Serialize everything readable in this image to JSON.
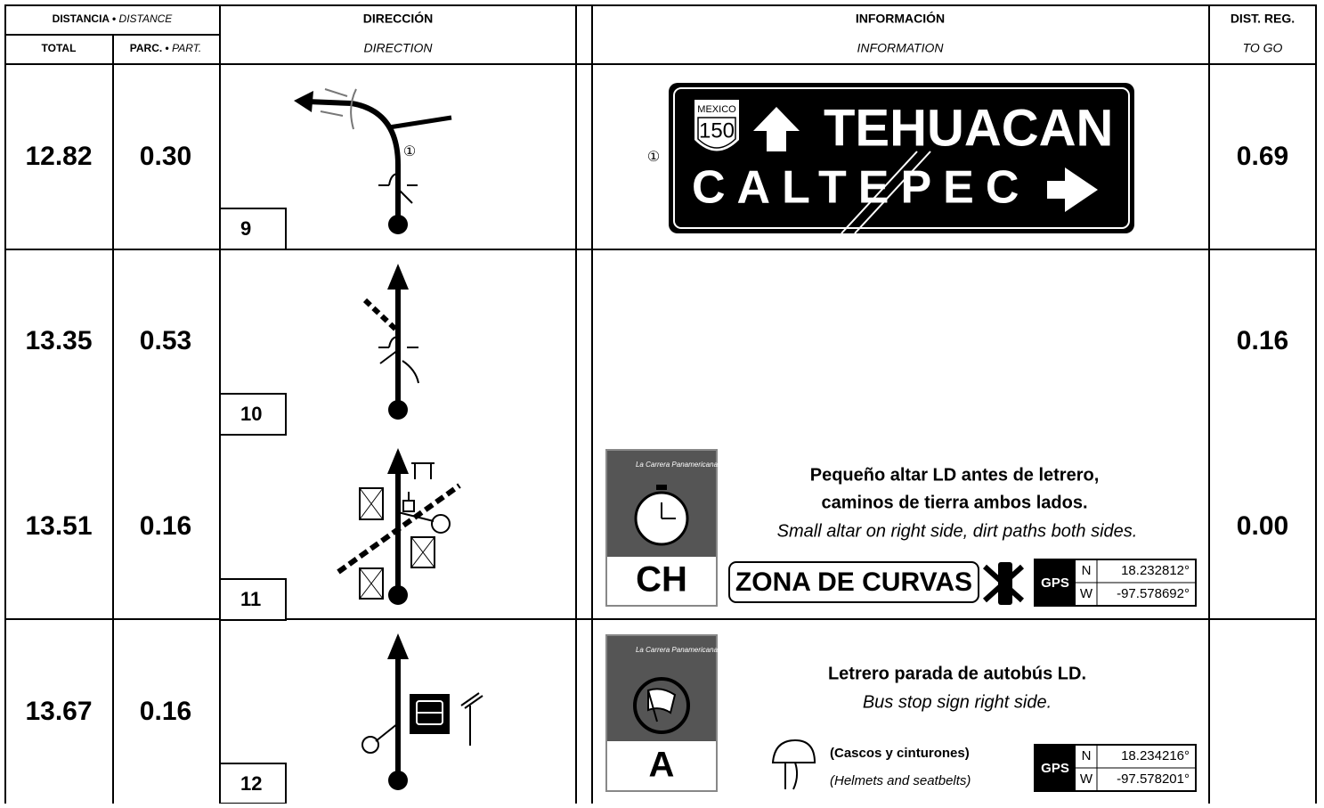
{
  "header": {
    "distance": "DISTANCIA •",
    "distance_en": "DISTANCE",
    "total": "TOTAL",
    "partial": "PARC. •",
    "partial_en": "PART.",
    "direction": "DIRECCIÓN",
    "direction_en": "DIRECTION",
    "info": "INFORMACIÓN",
    "info_en": "INFORMATION",
    "to_go": "DIST. REG.",
    "to_go_en": "TO GO"
  },
  "rows": [
    {
      "number": "9",
      "total": "12.82",
      "partial": "0.30",
      "to_go": "0.69",
      "marker": "①",
      "sign": {
        "shield_top": "MEXICO",
        "shield_number": "150",
        "line1": "TEHUACAN",
        "line2": "CALTEPEC"
      }
    },
    {
      "number": "10",
      "total": "13.35",
      "partial": "0.53",
      "to_go": "0.16"
    },
    {
      "number": "11",
      "total": "13.51",
      "partial": "0.16",
      "to_go": "0.00",
      "card": {
        "brand": "La Carrera Panamericana",
        "letter": "CH"
      },
      "info_es": [
        "Pequeño altar LD antes de letrero,",
        "caminos de tierra ambos lados."
      ],
      "info_en": "Small altar on right side, dirt paths both sides.",
      "zone": "ZONA DE CURVAS",
      "gps": {
        "label": "GPS",
        "n": "N",
        "lat": "18.232812°",
        "w": "W",
        "lon": "-97.578692°"
      }
    },
    {
      "number": "12",
      "total": "13.67",
      "partial": "0.16",
      "card": {
        "brand": "La Carrera Panamericana",
        "letter": "A"
      },
      "info_es": [
        "Letrero parada de autobús LD."
      ],
      "info_en": "Bus stop sign right side.",
      "note_es": "(Cascos y cinturones)",
      "note_en": "(Helmets and seatbelts)",
      "gps": {
        "label": "GPS",
        "n": "N",
        "lat": "18.234216°",
        "w": "W",
        "lon": "-97.578201°"
      }
    }
  ]
}
